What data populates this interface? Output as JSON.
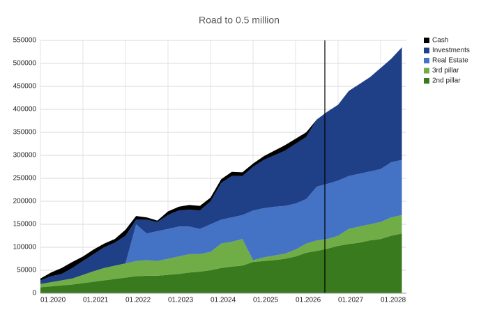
{
  "chart_data": {
    "type": "stacked-area",
    "title": "Road to 0.5 million",
    "categories": [
      "01.2020",
      null,
      null,
      null,
      "01.2021",
      null,
      null,
      null,
      "01.2022",
      null,
      null,
      null,
      "01.2023",
      null,
      null,
      null,
      "01.2024",
      null,
      null,
      null,
      "01.2025",
      null,
      null,
      null,
      "01.2026",
      null,
      null,
      null,
      "01.2027",
      null,
      null,
      null,
      "01.2028",
      null,
      null
    ],
    "series": [
      {
        "name": "2nd pillar",
        "color": "#3a7a1f",
        "values": [
          13000,
          15000,
          17000,
          19000,
          22000,
          25000,
          28000,
          31000,
          34000,
          37000,
          38000,
          38000,
          40000,
          42000,
          45000,
          47000,
          50000,
          55000,
          58000,
          60000,
          68000,
          70000,
          72000,
          75000,
          80000,
          88000,
          92000,
          97000,
          103000,
          107000,
          110000,
          115000,
          118000,
          125000,
          130000
        ]
      },
      {
        "name": "3rd pillar",
        "color": "#70ad47",
        "values": [
          7000,
          9000,
          11000,
          13000,
          18000,
          23000,
          27000,
          29000,
          31000,
          33000,
          34000,
          32000,
          35000,
          38000,
          40000,
          38000,
          40000,
          53000,
          54000,
          58000,
          4000,
          8000,
          10000,
          11000,
          15000,
          20000,
          23000,
          21000,
          22000,
          33000,
          35000,
          35000,
          37000,
          40000,
          40000
        ]
      },
      {
        "name": "Real Estate",
        "color": "#4472c4",
        "values": [
          0,
          0,
          0,
          0,
          0,
          0,
          0,
          0,
          0,
          80000,
          58000,
          65000,
          65000,
          65000,
          60000,
          55000,
          60000,
          52000,
          53000,
          52000,
          108000,
          107000,
          106000,
          104000,
          100000,
          97000,
          117000,
          120000,
          120000,
          115000,
          115000,
          115000,
          115000,
          120000,
          120000
        ]
      },
      {
        "name": "Investments",
        "color": "#1f3f86",
        "values": [
          8000,
          13000,
          14000,
          23000,
          30000,
          37000,
          45000,
          50000,
          60000,
          10000,
          30000,
          20000,
          30000,
          35000,
          37000,
          40000,
          50000,
          80000,
          90000,
          85000,
          95000,
          105000,
          112000,
          120000,
          130000,
          135000,
          146000,
          157000,
          165000,
          185000,
          195000,
          205000,
          220000,
          225000,
          245000
        ]
      },
      {
        "name": "Cash",
        "color": "#000000",
        "values": [
          4000,
          8000,
          13000,
          13000,
          10000,
          10000,
          8000,
          8000,
          13000,
          8000,
          5000,
          3000,
          8000,
          8000,
          10000,
          10000,
          8000,
          8000,
          9000,
          8000,
          7000,
          8000,
          10000,
          12000,
          11000,
          10000,
          0,
          0,
          0,
          0,
          0,
          0,
          0,
          0,
          0
        ]
      }
    ],
    "ylim": [
      0,
      550000
    ],
    "yticks": [
      0,
      50000,
      100000,
      150000,
      200000,
      250000,
      300000,
      350000,
      400000,
      450000,
      500000,
      550000
    ],
    "grid": true,
    "legend": "right"
  }
}
